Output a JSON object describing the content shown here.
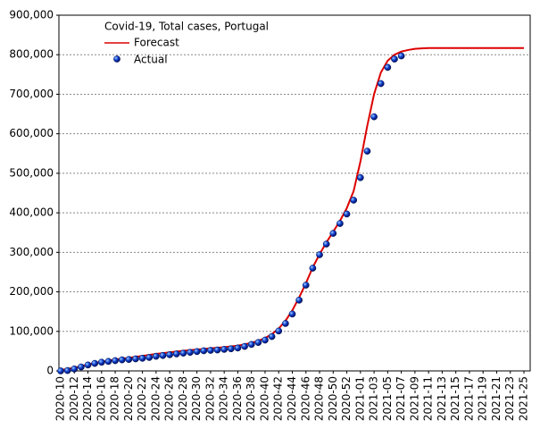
{
  "chart_data": {
    "type": "line",
    "title": "Covid-19, Total cases, Portugal",
    "categories": [
      "2020-10",
      null,
      "2020-12",
      null,
      "2020-14",
      null,
      "2020-16",
      null,
      "2020-18",
      null,
      "2020-20",
      null,
      "2020-22",
      null,
      "2020-24",
      null,
      "2020-26",
      null,
      "2020-28",
      null,
      "2020-30",
      null,
      "2020-32",
      null,
      "2020-34",
      null,
      "2020-36",
      null,
      "2020-38",
      null,
      "2020-40",
      null,
      "2020-42",
      null,
      "2020-44",
      null,
      "2020-46",
      null,
      "2020-48",
      null,
      "2020-50",
      null,
      "2020-52",
      null,
      "2021-01",
      null,
      "2021-03",
      null,
      "2021-05",
      null,
      "2021-07",
      null,
      "2021-09",
      null,
      "2021-11",
      null,
      "2021-13",
      null,
      "2021-15",
      null,
      "2021-17",
      null,
      "2021-19",
      null,
      "2021-21",
      null,
      "2021-23",
      null,
      "2021-25"
    ],
    "series": [
      {
        "name": "Forecast",
        "color": "#dd0000",
        "values": [
          2000,
          5000,
          8000,
          12000,
          16000,
          20000,
          23000,
          26000,
          28500,
          31000,
          33000,
          35500,
          38000,
          40500,
          43000,
          45000,
          47000,
          49000,
          51000,
          52500,
          54000,
          55500,
          57000,
          58500,
          60000,
          62000,
          64000,
          67000,
          71000,
          76000,
          83000,
          93000,
          107000,
          127000,
          153000,
          186000,
          222000,
          262000,
          295000,
          325000,
          352000,
          380000,
          412000,
          455000,
          530000,
          620000,
          700000,
          755000,
          785000,
          800000,
          808000,
          812000,
          815000,
          816000,
          817000,
          817000,
          817000,
          817000,
          817000,
          817000,
          817000,
          817000,
          817000,
          817000,
          817000,
          817000,
          817000,
          817000,
          817000
        ]
      },
      {
        "name": "Actual",
        "color": "#1040d0",
        "values": [
          0,
          1000,
          5000,
          10000,
          15000,
          19000,
          22000,
          24000,
          26000,
          28000,
          29000,
          30500,
          32000,
          34000,
          37000,
          39000,
          41000,
          43000,
          45000,
          47000,
          49000,
          51000,
          52000,
          53000,
          54500,
          56000,
          58000,
          62000,
          67000,
          72000,
          78000,
          87000,
          101000,
          120000,
          144000,
          179000,
          217000,
          260000,
          294000,
          321000,
          348000,
          373000,
          397000,
          432000,
          489000,
          556000,
          643000,
          727000,
          768000,
          789000,
          797000,
          null,
          null,
          null,
          null,
          null,
          null,
          null,
          null,
          null,
          null,
          null,
          null,
          null,
          null,
          null,
          null,
          null,
          null
        ]
      }
    ],
    "ylim": [
      0,
      900000
    ],
    "yticks": [
      0,
      {
        "value": 100000,
        "label": "100,000"
      },
      {
        "value": 200000,
        "label": "200,000"
      },
      {
        "value": 300000,
        "label": "300,000"
      },
      {
        "value": 400000,
        "label": "400,000"
      },
      {
        "value": 500000,
        "label": "500,000"
      },
      {
        "value": 600000,
        "label": "600,000"
      },
      {
        "value": 700000,
        "label": "700,000"
      },
      {
        "value": 800000,
        "label": "800,000"
      },
      {
        "value": 900000,
        "label": "900,000"
      }
    ],
    "grid": true
  }
}
